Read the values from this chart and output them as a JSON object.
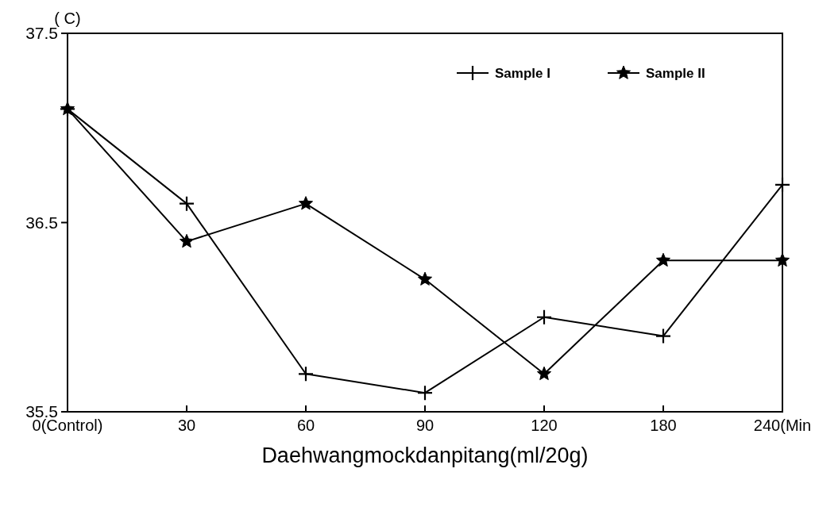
{
  "chart_data": {
    "type": "line",
    "ylabel": "( C)",
    "xlabel": "Daehwangmockdanpitang(ml/20g)",
    "categories": [
      "0(Control)",
      "30",
      "60",
      "90",
      "120",
      "180",
      "240(Min"
    ],
    "ylim": [
      35.5,
      37.5
    ],
    "yticks": [
      35.5,
      36.5,
      37.5
    ],
    "legend": "top right",
    "grid": false,
    "line_style": "solid",
    "series": [
      {
        "name": "Sample I",
        "color": "#000000",
        "marker": "cross",
        "values": [
          37.1,
          36.6,
          35.7,
          35.6,
          36.0,
          35.9,
          36.7
        ]
      },
      {
        "name": "Sample II",
        "color": "#000000",
        "marker": "star",
        "values": [
          37.1,
          36.4,
          36.6,
          36.2,
          35.7,
          36.3,
          36.3
        ]
      }
    ]
  }
}
